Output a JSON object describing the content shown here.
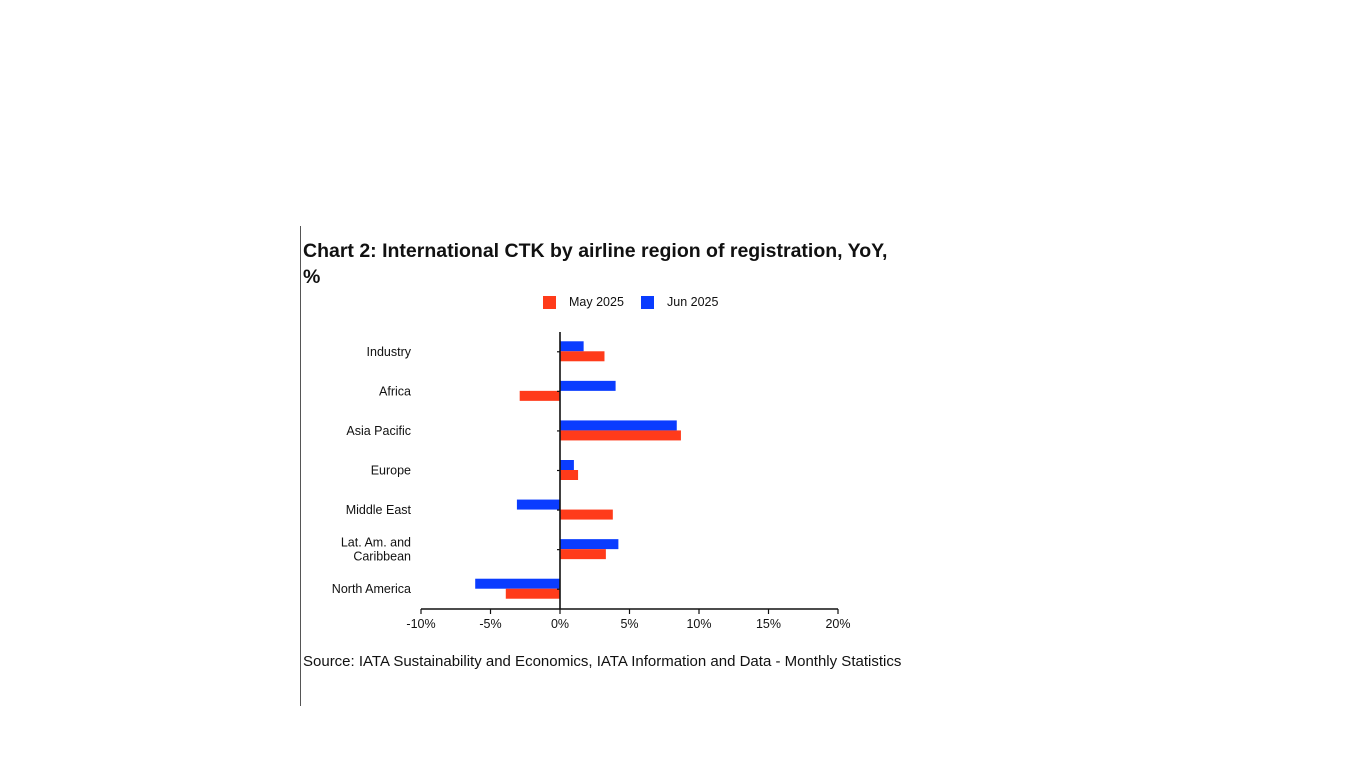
{
  "chart_data": {
    "type": "bar",
    "orientation": "horizontal",
    "title": "Chart 2: International CTK by airline region of registration, YoY, %",
    "source": "Source: IATA Sustainability and Economics, IATA Information and Data - Monthly Statistics",
    "categories": [
      "Industry",
      "Africa",
      "Asia Pacific",
      "Europe",
      "Middle East",
      "Lat. Am. and Caribbean",
      "North America"
    ],
    "category_lines": [
      [
        "Industry"
      ],
      [
        "Africa"
      ],
      [
        "Asia Pacific"
      ],
      [
        "Europe"
      ],
      [
        "Middle East"
      ],
      [
        "Lat. Am. and",
        "Caribbean"
      ],
      [
        "North America"
      ]
    ],
    "series": [
      {
        "name": "May 2025",
        "color": "#ff3b1a",
        "values": [
          3.2,
          -2.9,
          8.7,
          1.3,
          3.8,
          3.3,
          -3.9
        ]
      },
      {
        "name": "Jun 2025",
        "color": "#0a3cff",
        "values": [
          1.7,
          4.0,
          8.4,
          1.0,
          -3.1,
          4.2,
          -6.1
        ]
      }
    ],
    "xlim": [
      -10,
      20
    ],
    "xticks": [
      -10,
      -5,
      0,
      5,
      10,
      15,
      20
    ],
    "xtick_labels": [
      "-10%",
      "-5%",
      "0%",
      "5%",
      "10%",
      "15%",
      "20%"
    ],
    "legend_position": "top-center",
    "grid": false
  }
}
